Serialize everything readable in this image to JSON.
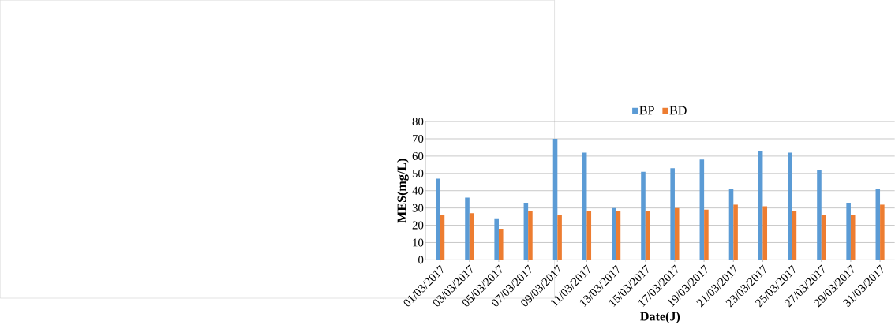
{
  "chart_data": {
    "type": "bar",
    "xlabel": "Date(J)",
    "ylabel": "MES(mg/L)",
    "categories": [
      "01/03/2017",
      "03/03/2017",
      "05/03/2017",
      "07/03/2017",
      "09/03/2017",
      "11/03/2017",
      "13/03/2017",
      "15/03/2017",
      "17/03/2017",
      "19/03/2017",
      "21/03/2017",
      "23/03/2017",
      "25/03/2017",
      "27/03/2017",
      "29/03/2017",
      "31/03/2017"
    ],
    "series": [
      {
        "name": "BP",
        "color": "#5b9bd5",
        "values": [
          47,
          36,
          24,
          33,
          70,
          62,
          30,
          51,
          53,
          58,
          41,
          63,
          62,
          52,
          33,
          41
        ]
      },
      {
        "name": "BD",
        "color": "#ed7d31",
        "values": [
          26,
          27,
          18,
          28,
          26,
          28,
          28,
          28,
          30,
          29,
          32,
          31,
          28,
          26,
          26,
          32
        ]
      }
    ],
    "ylim": [
      0,
      80
    ],
    "yticks": [
      0,
      10,
      20,
      30,
      40,
      50,
      60,
      70,
      80
    ],
    "grid": "y",
    "legend": "top"
  }
}
